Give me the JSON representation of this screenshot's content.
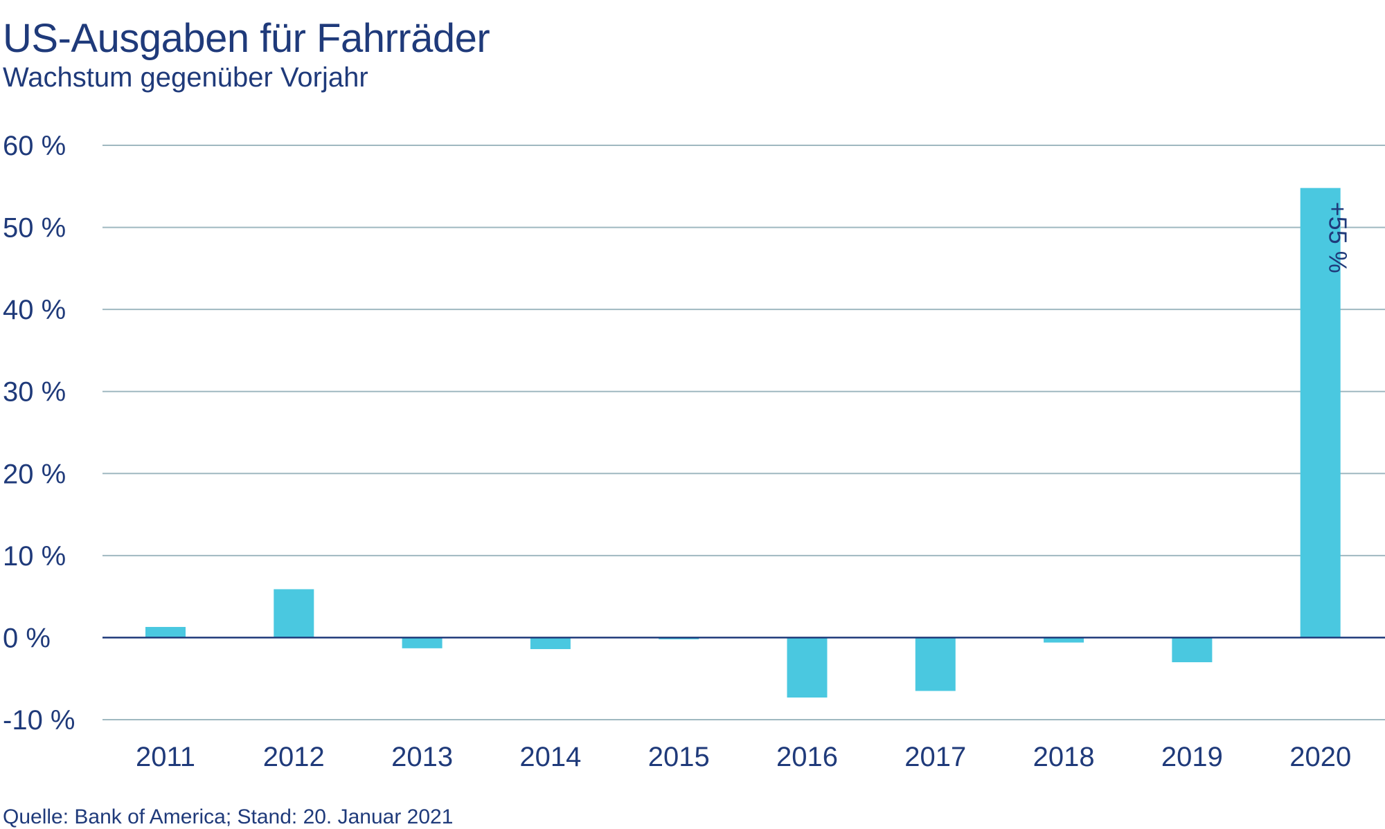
{
  "header": {
    "title": "US-Ausgaben für Fahrräder",
    "subtitle": "Wachstum gegenüber Vorjahr"
  },
  "footer": {
    "source": "Quelle: Bank of America; Stand: 20. Januar 2021"
  },
  "colors": {
    "bar": "#4ac8e0",
    "text": "#1f3a7a",
    "grid": "#9fb8c0",
    "zero_line": "#1f3a7a"
  },
  "chart_data": {
    "type": "bar",
    "title": "US-Ausgaben für Fahrräder",
    "subtitle": "Wachstum gegenüber Vorjahr",
    "categories": [
      "2011",
      "2012",
      "2013",
      "2014",
      "2015",
      "2016",
      "2017",
      "2018",
      "2019",
      "2020"
    ],
    "values": [
      1.3,
      5.9,
      -1.3,
      -1.4,
      -0.2,
      -7.3,
      -6.5,
      -0.6,
      -3.0,
      54.8
    ],
    "ylim": [
      -10,
      60
    ],
    "yticks": [
      -10,
      0,
      10,
      20,
      30,
      40,
      50,
      60
    ],
    "ytick_labels": [
      "-10 %",
      "0 %",
      "10 %",
      "20 %",
      "30 %",
      "40 %",
      "50 %",
      "60 %"
    ],
    "grid": true,
    "annotations": [
      {
        "category": "2020",
        "text": "+55 %"
      }
    ]
  }
}
